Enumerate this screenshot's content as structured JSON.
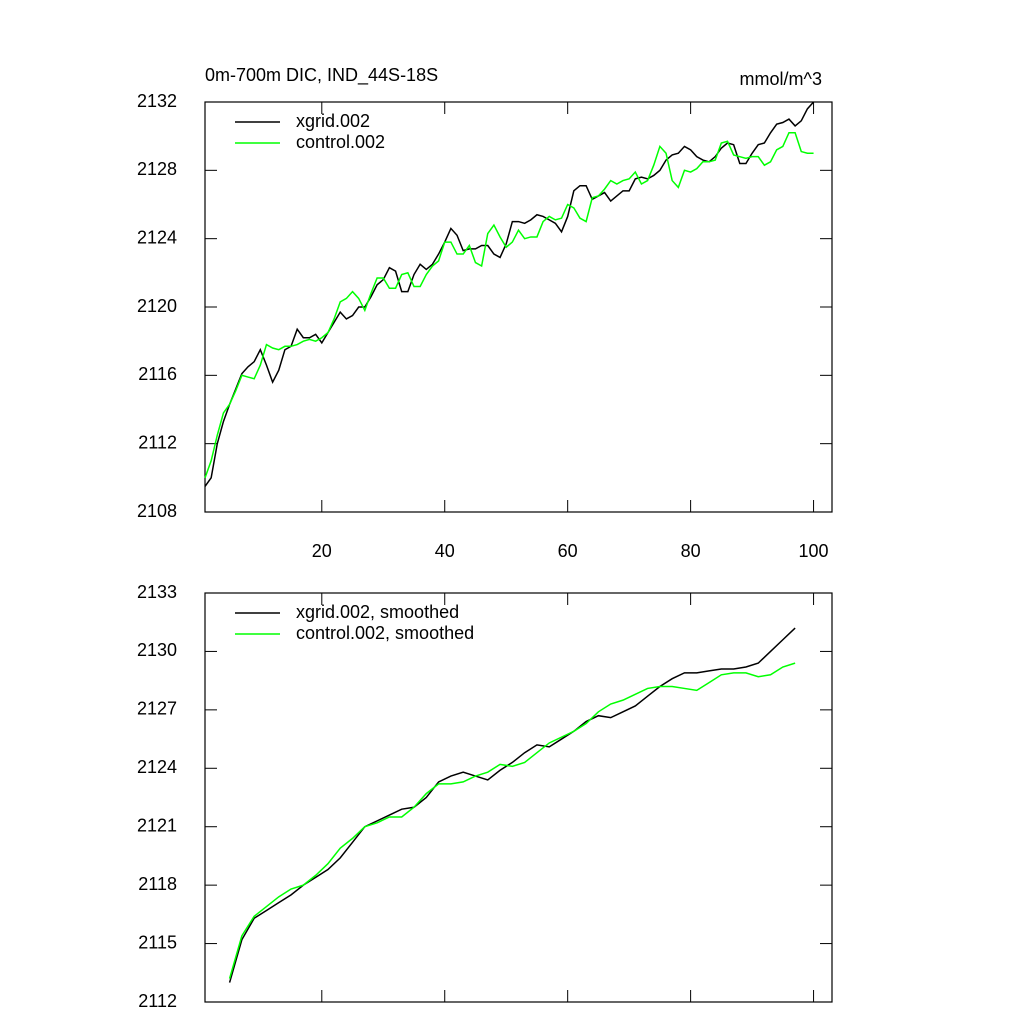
{
  "chart_data": [
    {
      "type": "line",
      "title": "0m-700m DIC, IND_44S-18S",
      "units": "mmol/m^3",
      "x": [
        1,
        2,
        3,
        4,
        5,
        6,
        7,
        8,
        9,
        10,
        11,
        12,
        13,
        14,
        15,
        16,
        17,
        18,
        19,
        20,
        21,
        22,
        23,
        24,
        25,
        26,
        27,
        28,
        29,
        30,
        31,
        32,
        33,
        34,
        35,
        36,
        37,
        38,
        39,
        40,
        41,
        42,
        43,
        44,
        45,
        46,
        47,
        48,
        49,
        50,
        51,
        52,
        53,
        54,
        55,
        56,
        57,
        58,
        59,
        60,
        61,
        62,
        63,
        64,
        65,
        66,
        67,
        68,
        69,
        70,
        71,
        72,
        73,
        74,
        75,
        76,
        77,
        78,
        79,
        80,
        81,
        82,
        83,
        84,
        85,
        86,
        87,
        88,
        89,
        90,
        91,
        92,
        93,
        94,
        95,
        96,
        97,
        98,
        99,
        100
      ],
      "series": [
        {
          "name": "xgrid.002",
          "color": "#000000",
          "values": [
            2109.5,
            2110,
            2112,
            2113.3,
            2114.3,
            2115.2,
            2116.1,
            2116.5,
            2116.8,
            2117.5,
            2116.6,
            2115.6,
            2116.3,
            2117.5,
            2117.7,
            2118.7,
            2118.2,
            2118.2,
            2118.4,
            2117.9,
            2118.5,
            2119.1,
            2119.7,
            2119.3,
            2119.5,
            2120,
            2120,
            2120.6,
            2121.3,
            2121.6,
            2122.3,
            2122.1,
            2120.9,
            2120.9,
            2121.9,
            2122.5,
            2122.2,
            2122.5,
            2123.1,
            2123.8,
            2124.6,
            2124.2,
            2123.3,
            2123.4,
            2123.4,
            2123.6,
            2123.6,
            2123.1,
            2122.9,
            2123.7,
            2125,
            2125,
            2124.9,
            2125.1,
            2125.4,
            2125.3,
            2125.1,
            2124.9,
            2124.4,
            2125.3,
            2126.8,
            2127.1,
            2127.1,
            2126.3,
            2126.5,
            2126.7,
            2126.2,
            2126.5,
            2126.8,
            2126.8,
            2127.5,
            2127.6,
            2127.5,
            2127.7,
            2128,
            2128.6,
            2128.9,
            2129,
            2129.4,
            2129.2,
            2128.8,
            2128.6,
            2128.5,
            2128.8,
            2129.3,
            2129.6,
            2129.5,
            2128.4,
            2128.4,
            2129,
            2129.5,
            2129.6,
            2130.2,
            2130.7,
            2130.8,
            2131,
            2130.6,
            2130.9,
            2131.6,
            2132
          ]
        },
        {
          "name": "control.002",
          "color": "#00ff00",
          "values": [
            2110,
            2111,
            2112.5,
            2113.8,
            2114.3,
            2115.1,
            2116,
            2115.9,
            2115.8,
            2116.6,
            2117.8,
            2117.6,
            2117.5,
            2117.7,
            2117.7,
            2117.8,
            2118,
            2118.1,
            2118,
            2118.2,
            2118.5,
            2119.3,
            2120.3,
            2120.5,
            2120.9,
            2120.5,
            2119.8,
            2120.8,
            2121.7,
            2121.7,
            2121.1,
            2121.1,
            2121.9,
            2122,
            2121.2,
            2121.2,
            2121.9,
            2122.4,
            2122.7,
            2123.8,
            2123.8,
            2123.1,
            2123.1,
            2123.6,
            2122.6,
            2122.4,
            2124.3,
            2124.8,
            2124.1,
            2123.5,
            2123.8,
            2124.5,
            2124,
            2124.1,
            2124.1,
            2125,
            2125.3,
            2125.1,
            2125.2,
            2126,
            2125.8,
            2125.2,
            2125,
            2126.4,
            2126.5,
            2126.9,
            2127.4,
            2127.2,
            2127.4,
            2127.5,
            2127.9,
            2127.2,
            2127.4,
            2128.3,
            2129.4,
            2129,
            2127.4,
            2127,
            2128,
            2127.9,
            2128.1,
            2128.5,
            2128.5,
            2128.6,
            2129.6,
            2129.7,
            2128.9,
            2128.8,
            2128.7,
            2128.8,
            2128.8,
            2128.3,
            2128.5,
            2129.2,
            2129.4,
            2130.2,
            2130.2,
            2129.1,
            2129,
            2129
          ]
        }
      ],
      "xlim": [
        1,
        103
      ],
      "xticks": [
        20,
        40,
        60,
        80,
        100
      ],
      "show_xtick_labels": true,
      "ylim": [
        2108,
        2132
      ],
      "yticks": [
        2108,
        2112,
        2116,
        2120,
        2124,
        2128,
        2132
      ]
    },
    {
      "type": "line",
      "x": [
        5,
        7,
        9,
        11,
        13,
        15,
        17,
        19,
        21,
        23,
        25,
        27,
        29,
        31,
        33,
        35,
        37,
        39,
        41,
        43,
        45,
        47,
        49,
        51,
        53,
        55,
        57,
        59,
        61,
        63,
        65,
        67,
        69,
        71,
        73,
        75,
        77,
        79,
        81,
        83,
        85,
        87,
        89,
        91,
        93,
        95,
        97
      ],
      "series": [
        {
          "name": "xgrid.002, smoothed",
          "color": "#000000",
          "values": [
            2113,
            2115.2,
            2116.3,
            2116.7,
            2117.1,
            2117.5,
            2118,
            2118.4,
            2118.8,
            2119.4,
            2120.2,
            2121,
            2121.3,
            2121.6,
            2121.9,
            2122,
            2122.5,
            2123.3,
            2123.6,
            2123.8,
            2123.6,
            2123.4,
            2123.9,
            2124.3,
            2124.8,
            2125.2,
            2125.1,
            2125.5,
            2125.9,
            2126.4,
            2126.7,
            2126.6,
            2126.9,
            2127.2,
            2127.7,
            2128.2,
            2128.6,
            2128.9,
            2128.9,
            2129,
            2129.1,
            2129.1,
            2129.2,
            2129.4,
            2130,
            2130.6,
            2131.2
          ]
        },
        {
          "name": "control.002, smoothed",
          "color": "#00ff00",
          "values": [
            2113.2,
            2115.4,
            2116.4,
            2116.9,
            2117.4,
            2117.8,
            2118,
            2118.5,
            2119.1,
            2119.9,
            2120.4,
            2121,
            2121.2,
            2121.5,
            2121.5,
            2122,
            2122.7,
            2123.2,
            2123.2,
            2123.3,
            2123.6,
            2123.8,
            2124.2,
            2124.1,
            2124.3,
            2124.8,
            2125.3,
            2125.6,
            2125.9,
            2126.3,
            2126.9,
            2127.3,
            2127.5,
            2127.8,
            2128.1,
            2128.2,
            2128.2,
            2128.1,
            2128,
            2128.4,
            2128.8,
            2128.9,
            2128.9,
            2128.7,
            2128.8,
            2129.2,
            2129.4
          ]
        }
      ],
      "xlim": [
        1,
        103
      ],
      "xticks": [
        20,
        40,
        60,
        80,
        100
      ],
      "show_xtick_labels": false,
      "ylim": [
        2112,
        2133
      ],
      "yticks": [
        2112,
        2115,
        2118,
        2121,
        2124,
        2127,
        2130,
        2133
      ]
    }
  ]
}
